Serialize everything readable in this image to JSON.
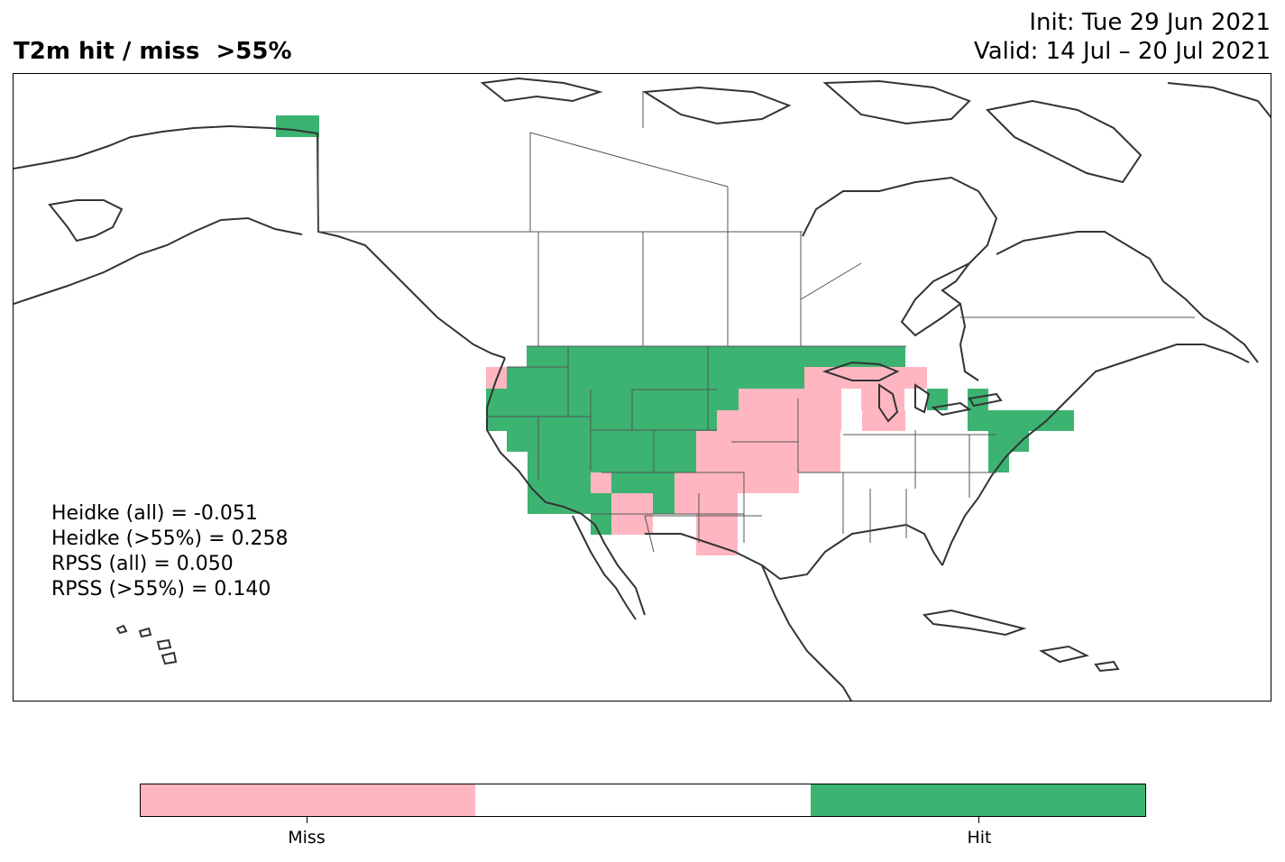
{
  "header": {
    "title": "T2m hit / miss  >55%",
    "init": "Init: Tue 29 Jun 2021",
    "valid": "Valid: 14 Jul – 20 Jul 2021"
  },
  "stats": [
    "Heidke (all) = -0.051",
    "Heidke (>55%) = 0.258",
    "RPSS (all) = 0.050",
    "RPSS (>55%) = 0.140"
  ],
  "colors": {
    "miss": "#ffb6c1",
    "neutral": "#ffffff",
    "hit": "#3cb371",
    "coast": "#333333",
    "border": "#555555"
  },
  "colorbar": {
    "segments": [
      "miss",
      "neutral",
      "hit"
    ],
    "labels": [
      "Miss",
      "Hit"
    ]
  },
  "legend_categories": [
    "Miss",
    "Hit"
  ]
}
